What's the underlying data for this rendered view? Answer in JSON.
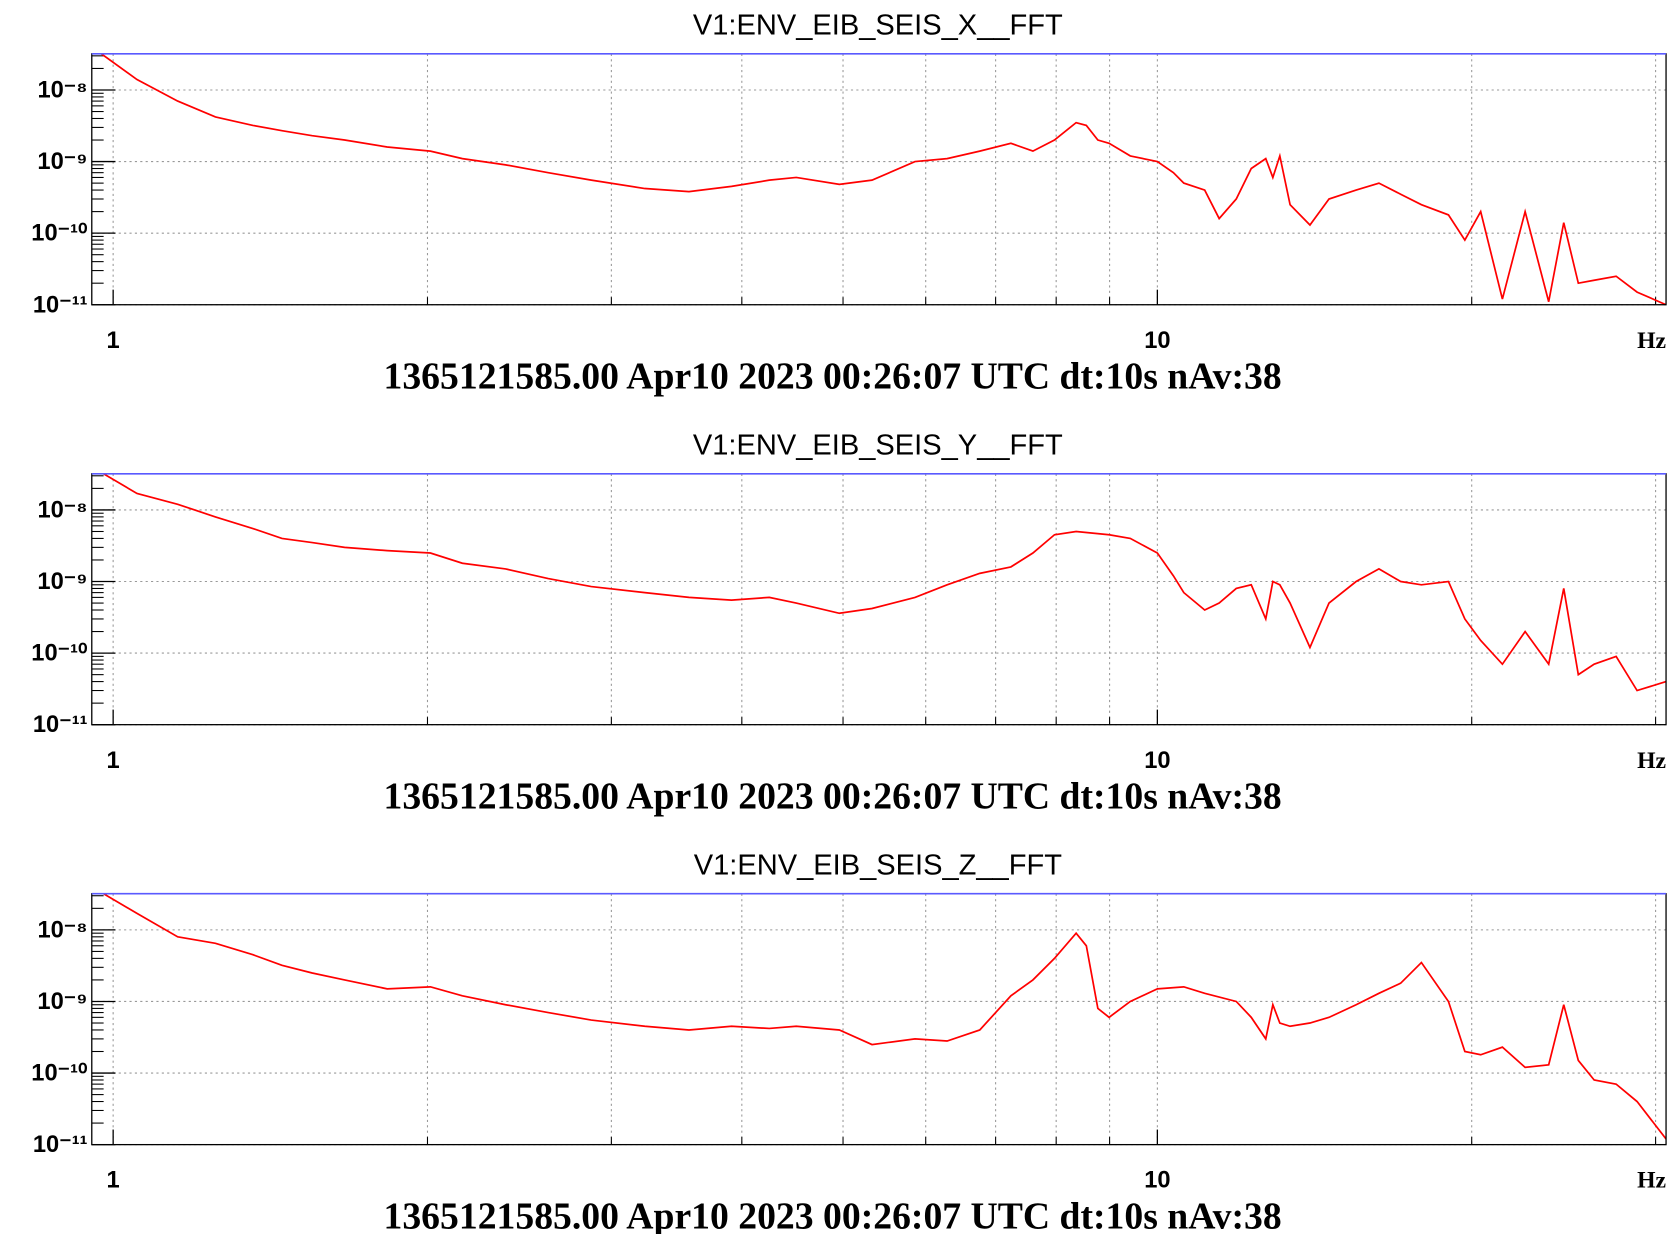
{
  "chart_data": [
    {
      "type": "line",
      "title": "V1:ENV_EIB_SEIS_X__FFT",
      "subtitle": "1365121585.00 Apr10 2023 00:26:07 UTC dt:10s nAv:38",
      "xlabel": "Hz",
      "xscale": "log",
      "yscale": "log",
      "grid": true,
      "xlim": [
        0.954,
        30.7
      ],
      "ylim": [
        1e-11,
        3.2e-08
      ],
      "xticks": [
        1,
        10
      ],
      "xgrid": [
        2,
        3,
        4,
        5,
        6,
        7,
        8,
        9,
        20,
        30
      ],
      "yticks": [
        {
          "value": 1e-11,
          "label": "10⁻¹¹"
        },
        {
          "value": 1e-10,
          "label": "10⁻¹⁰"
        },
        {
          "value": 1e-09,
          "label": "10⁻⁹"
        },
        {
          "value": 1e-08,
          "label": "10⁻⁸"
        }
      ],
      "yminorticks": [
        2e-11,
        3e-11,
        4e-11,
        5e-11,
        6e-11,
        7e-11,
        8e-11,
        9e-11,
        2e-10,
        3e-10,
        4e-10,
        5e-10,
        6e-10,
        7e-10,
        8e-10,
        9e-10,
        2e-09,
        3e-09,
        4e-09,
        5e-09,
        6e-09,
        7e-09,
        8e-09,
        9e-09,
        2e-08,
        3e-08
      ],
      "limit_color": "#5a5aff",
      "x": [
        0.954,
        1.054,
        1.153,
        1.253,
        1.361,
        1.451,
        1.551,
        1.666,
        1.83,
        2.013,
        2.16,
        2.376,
        2.61,
        2.87,
        3.23,
        3.56,
        3.91,
        4.25,
        4.51,
        4.96,
        5.33,
        5.86,
        6.29,
        6.76,
        7.24,
        7.6,
        7.97,
        8.36,
        8.55,
        8.77,
        8.99,
        9.42,
        10,
        10.36,
        10.6,
        11.1,
        11.46,
        11.9,
        12.3,
        12.7,
        12.9,
        13.1,
        13.4,
        14.0,
        14.6,
        15.5,
        16.3,
        17.1,
        17.9,
        19.0,
        19.7,
        20.4,
        21.4,
        22.5,
        23.7,
        24.5,
        25.3,
        26.2,
        27.5,
        28.8,
        30.7
      ],
      "series": [
        {
          "color": "#ff0000",
          "values": [
            4e-08,
            1.4e-08,
            7e-09,
            4.2e-09,
            3.2e-09,
            2.7e-09,
            2.3e-09,
            2e-09,
            1.6e-09,
            1.4e-09,
            1.1e-09,
            9e-10,
            7e-10,
            5.5e-10,
            4.2e-10,
            3.8e-10,
            4.5e-10,
            5.5e-10,
            6e-10,
            4.8e-10,
            5.5e-10,
            1e-09,
            1.1e-09,
            1.4e-09,
            1.8e-09,
            1.4e-09,
            2e-09,
            3.5e-09,
            3.2e-09,
            2e-09,
            1.8e-09,
            1.2e-09,
            1e-09,
            7e-10,
            5e-10,
            4e-10,
            1.6e-10,
            3e-10,
            8e-10,
            1.1e-09,
            6e-10,
            1.2e-09,
            2.5e-10,
            1.3e-10,
            3e-10,
            4e-10,
            5e-10,
            3.5e-10,
            2.5e-10,
            1.8e-10,
            8e-11,
            2e-10,
            1.2e-11,
            2e-10,
            1.1e-11,
            1.4e-10,
            2e-11,
            2.2e-11,
            2.5e-11,
            1.5e-11,
            1e-11
          ]
        }
      ]
    },
    {
      "type": "line",
      "title": "V1:ENV_EIB_SEIS_Y__FFT",
      "subtitle": "1365121585.00 Apr10 2023 00:26:07 UTC dt:10s nAv:38",
      "xlabel": "Hz",
      "xscale": "log",
      "yscale": "log",
      "grid": true,
      "xlim": [
        0.954,
        30.7
      ],
      "ylim": [
        1e-11,
        3.2e-08
      ],
      "xticks": [
        1,
        10
      ],
      "xgrid": [
        2,
        3,
        4,
        5,
        6,
        7,
        8,
        9,
        20,
        30
      ],
      "yticks": [
        {
          "value": 1e-11,
          "label": "10⁻¹¹"
        },
        {
          "value": 1e-10,
          "label": "10⁻¹⁰"
        },
        {
          "value": 1e-09,
          "label": "10⁻⁹"
        },
        {
          "value": 1e-08,
          "label": "10⁻⁸"
        }
      ],
      "yminorticks": [
        2e-11,
        3e-11,
        4e-11,
        5e-11,
        6e-11,
        7e-11,
        8e-11,
        9e-11,
        2e-10,
        3e-10,
        4e-10,
        5e-10,
        6e-10,
        7e-10,
        8e-10,
        9e-10,
        2e-09,
        3e-09,
        4e-09,
        5e-09,
        6e-09,
        7e-09,
        8e-09,
        9e-09,
        2e-08,
        3e-08
      ],
      "limit_color": "#5a5aff",
      "x": [
        0.954,
        1.054,
        1.153,
        1.253,
        1.361,
        1.451,
        1.551,
        1.666,
        1.83,
        2.013,
        2.16,
        2.376,
        2.61,
        2.87,
        3.23,
        3.56,
        3.91,
        4.25,
        4.51,
        4.96,
        5.33,
        5.86,
        6.29,
        6.76,
        7.24,
        7.6,
        7.97,
        8.36,
        8.99,
        9.42,
        10,
        10.36,
        10.6,
        11.1,
        11.46,
        11.9,
        12.3,
        12.7,
        12.9,
        13.1,
        13.4,
        14.0,
        14.6,
        15.5,
        16.3,
        17.1,
        17.9,
        19.0,
        19.7,
        20.4,
        21.4,
        22.5,
        23.7,
        24.5,
        25.3,
        26.2,
        27.5,
        28.8,
        30.7
      ],
      "series": [
        {
          "color": "#ff0000",
          "values": [
            4e-08,
            1.7e-08,
            1.2e-08,
            8e-09,
            5.5e-09,
            4e-09,
            3.5e-09,
            3e-09,
            2.7e-09,
            2.5e-09,
            1.8e-09,
            1.5e-09,
            1.1e-09,
            8.5e-10,
            7e-10,
            6e-10,
            5.5e-10,
            6e-10,
            5e-10,
            3.6e-10,
            4.2e-10,
            6e-10,
            9e-10,
            1.3e-09,
            1.6e-09,
            2.5e-09,
            4.5e-09,
            5e-09,
            4.5e-09,
            4e-09,
            2.5e-09,
            1.2e-09,
            7e-10,
            4e-10,
            5e-10,
            8e-10,
            9e-10,
            3e-10,
            1e-09,
            9e-10,
            5e-10,
            1.2e-10,
            5e-10,
            1e-09,
            1.5e-09,
            1e-09,
            9e-10,
            1e-09,
            3e-10,
            1.5e-10,
            7e-11,
            2e-10,
            7e-11,
            8e-10,
            5e-11,
            7e-11,
            9e-11,
            3e-11,
            4e-11
          ]
        }
      ]
    },
    {
      "type": "line",
      "title": "V1:ENV_EIB_SEIS_Z__FFT",
      "subtitle": "1365121585.00 Apr10 2023 00:26:07 UTC dt:10s nAv:38",
      "xlabel": "Hz",
      "xscale": "log",
      "yscale": "log",
      "grid": true,
      "xlim": [
        0.954,
        30.7
      ],
      "ylim": [
        1e-11,
        3.2e-08
      ],
      "xticks": [
        1,
        10
      ],
      "xgrid": [
        2,
        3,
        4,
        5,
        6,
        7,
        8,
        9,
        20,
        30
      ],
      "yticks": [
        {
          "value": 1e-11,
          "label": "10⁻¹¹"
        },
        {
          "value": 1e-10,
          "label": "10⁻¹⁰"
        },
        {
          "value": 1e-09,
          "label": "10⁻⁹"
        },
        {
          "value": 1e-08,
          "label": "10⁻⁸"
        }
      ],
      "yminorticks": [
        2e-11,
        3e-11,
        4e-11,
        5e-11,
        6e-11,
        7e-11,
        8e-11,
        9e-11,
        2e-10,
        3e-10,
        4e-10,
        5e-10,
        6e-10,
        7e-10,
        8e-10,
        9e-10,
        2e-09,
        3e-09,
        4e-09,
        5e-09,
        6e-09,
        7e-09,
        8e-09,
        9e-09,
        2e-08,
        3e-08
      ],
      "limit_color": "#5a5aff",
      "x": [
        0.954,
        1.054,
        1.153,
        1.253,
        1.361,
        1.451,
        1.551,
        1.666,
        1.83,
        2.013,
        2.16,
        2.376,
        2.61,
        2.87,
        3.23,
        3.56,
        3.91,
        4.25,
        4.51,
        4.96,
        5.33,
        5.86,
        6.29,
        6.76,
        7.24,
        7.6,
        7.97,
        8.36,
        8.55,
        8.77,
        8.99,
        9.42,
        10,
        10.6,
        11.1,
        11.9,
        12.3,
        12.7,
        12.9,
        13.1,
        13.4,
        14.0,
        14.6,
        15.5,
        16.3,
        17.1,
        17.9,
        19.0,
        19.7,
        20.4,
        21.4,
        22.5,
        23.7,
        24.5,
        25.3,
        26.2,
        27.5,
        28.8,
        30.7
      ],
      "series": [
        {
          "color": "#ff0000",
          "values": [
            4e-08,
            1.7e-08,
            8e-09,
            6.5e-09,
            4.5e-09,
            3.2e-09,
            2.5e-09,
            2e-09,
            1.5e-09,
            1.6e-09,
            1.2e-09,
            9e-10,
            7e-10,
            5.5e-10,
            4.5e-10,
            4e-10,
            4.5e-10,
            4.2e-10,
            4.5e-10,
            4e-10,
            2.5e-10,
            3e-10,
            2.8e-10,
            4e-10,
            1.2e-09,
            2e-09,
            4e-09,
            9e-09,
            6e-09,
            8e-10,
            6e-10,
            1e-09,
            1.5e-09,
            1.6e-09,
            1.3e-09,
            1e-09,
            6e-10,
            3e-10,
            9e-10,
            5e-10,
            4.5e-10,
            5e-10,
            6e-10,
            9e-10,
            1.3e-09,
            1.8e-09,
            3.5e-09,
            1e-09,
            2e-10,
            1.8e-10,
            2.3e-10,
            1.2e-10,
            1.3e-10,
            9e-10,
            1.5e-10,
            8e-11,
            7e-11,
            4e-11,
            1.2e-11
          ]
        }
      ]
    }
  ]
}
